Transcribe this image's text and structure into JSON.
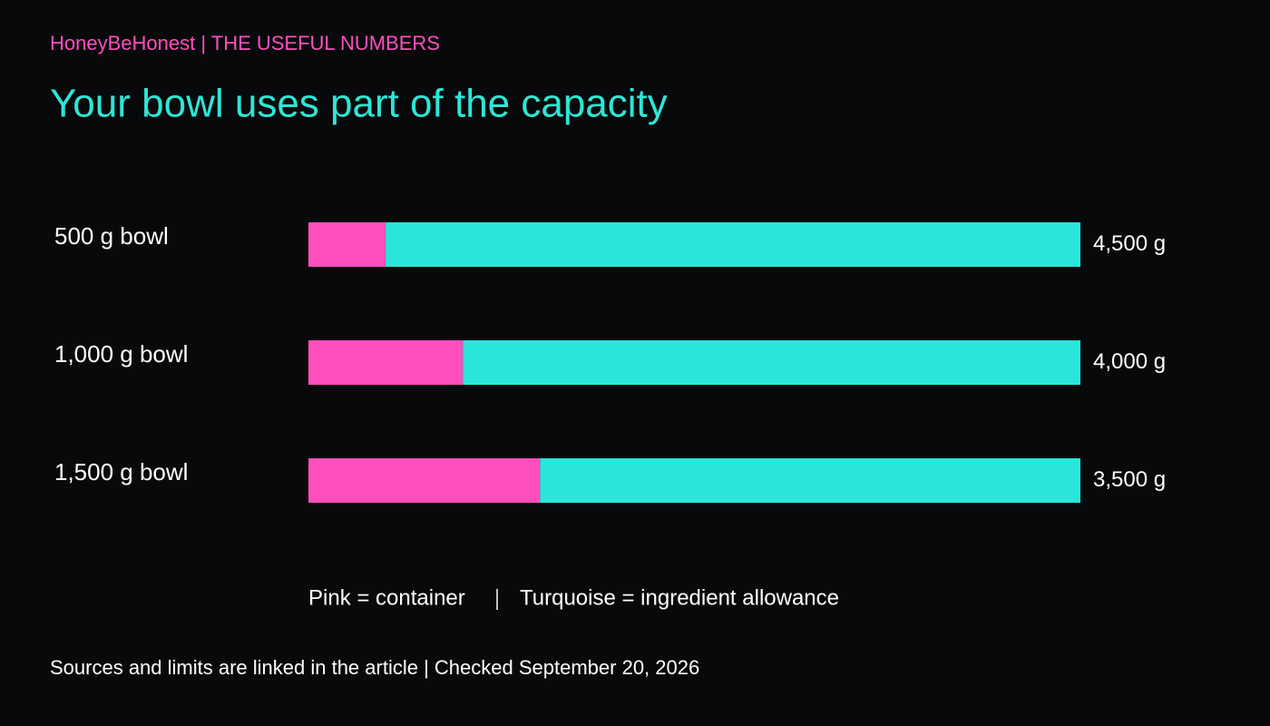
{
  "chart_data": {
    "type": "stacked-bar-horizontal",
    "kicker": "HoneyBeHonest | THE USEFUL NUMBERS",
    "title": "Your bowl uses part of the capacity",
    "footer": "Sources and limits are linked in the article | Checked September 20, 2026",
    "categories": [
      "500 g bowl",
      "1,000 g bowl",
      "1,500 g bowl"
    ],
    "xlim": [
      0,
      5000
    ],
    "series": [
      {
        "name": "Pink = container",
        "color": "#ff4fbd",
        "values": [
          500,
          1000,
          1500
        ]
      },
      {
        "name": "Turquoise = ingredient allowance",
        "color": "#2ae6d8",
        "values": [
          4500,
          4000,
          3500
        ],
        "value_labels": [
          "4,500 g",
          "4,000 g",
          "3,500 g"
        ]
      }
    ]
  }
}
